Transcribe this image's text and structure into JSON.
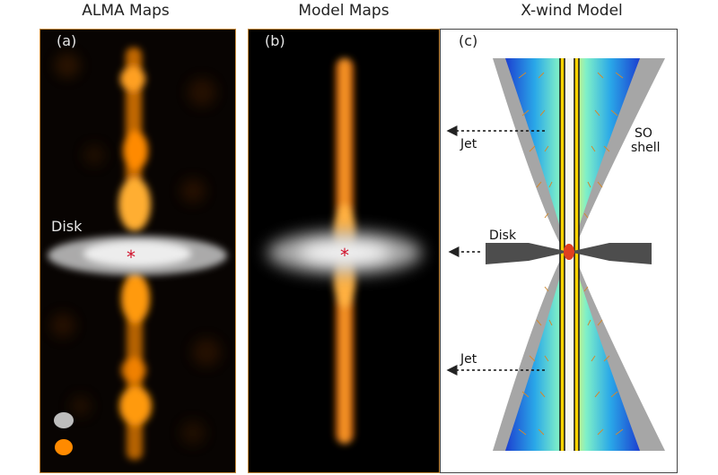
{
  "titles": {
    "alma": "ALMA Maps",
    "model": "Model Maps",
    "xwind": "X-wind Model"
  },
  "panels": {
    "a": {
      "tag": "(a)",
      "disk_label": "Disk"
    },
    "b": {
      "tag": "(b)"
    },
    "c": {
      "tag": "(c)",
      "jet_upper_label": "Jet",
      "jet_lower_label": "Jet",
      "disk_label": "Disk",
      "shell_label_line1": "SO",
      "shell_label_line2": "shell"
    }
  },
  "star_glyph": "*",
  "colors": {
    "jet_orange": "#ff8a00",
    "disk_white": "#e8e8e8",
    "star_red": "#d0102a",
    "shell_gray": "#a6a6a6",
    "disk_dark": "#4d4d4d",
    "panel_border": "#c98a3a"
  }
}
